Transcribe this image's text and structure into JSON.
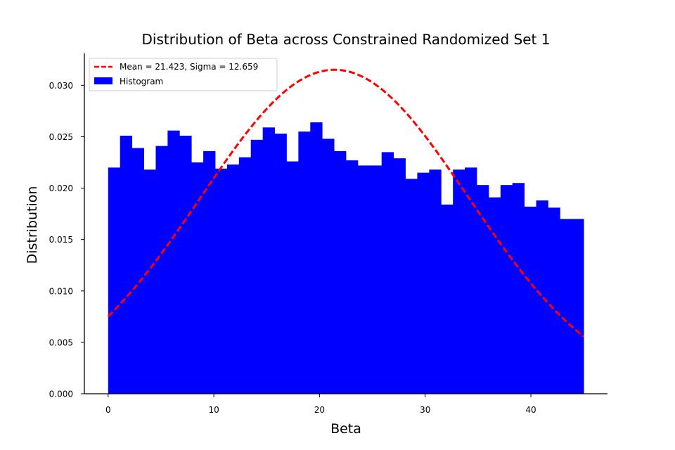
{
  "chart_data": {
    "type": "bar",
    "title": "Distribution of Beta across Constrained Randomized Set 1",
    "xlabel": "Beta",
    "ylabel": "Distribution",
    "xlim": [
      -2.25,
      47.25
    ],
    "ylim": [
      0,
      0.0331
    ],
    "xticks": [
      0,
      10,
      20,
      30,
      40
    ],
    "yticks": [
      "0.000",
      "0.005",
      "0.010",
      "0.015",
      "0.020",
      "0.025",
      "0.030"
    ],
    "grid": false,
    "legend_position": "top-left",
    "bin_edges": [
      0,
      1.125,
      2.25,
      3.375,
      4.5,
      5.625,
      6.75,
      7.875,
      9,
      10.125,
      11.25,
      12.375,
      13.5,
      14.625,
      15.75,
      16.875,
      18,
      19.125,
      20.25,
      21.375,
      22.5,
      23.625,
      24.75,
      25.875,
      27,
      28.125,
      29.25,
      30.375,
      31.5,
      32.625,
      33.75,
      34.875,
      36,
      37.125,
      38.25,
      39.375,
      40.5,
      41.625,
      42.75,
      43.875,
      45
    ],
    "values": [
      0.022,
      0.0251,
      0.0239,
      0.0218,
      0.0241,
      0.0256,
      0.0251,
      0.0225,
      0.0236,
      0.0219,
      0.0223,
      0.023,
      0.0247,
      0.0259,
      0.0253,
      0.0226,
      0.0255,
      0.0264,
      0.0248,
      0.0236,
      0.0227,
      0.0222,
      0.0222,
      0.0235,
      0.0229,
      0.0209,
      0.0215,
      0.0218,
      0.0184,
      0.0218,
      0.022,
      0.0203,
      0.0191,
      0.0203,
      0.0205,
      0.0182,
      0.0188,
      0.0181,
      0.017,
      0.017
    ],
    "fit": {
      "mean": 21.423,
      "sigma": 12.659,
      "x_range": [
        0,
        45
      ]
    },
    "series": [
      {
        "name": "Mean = 21.423, Sigma = 12.659",
        "kind": "line",
        "color": "#ff0000",
        "style": "dashed"
      },
      {
        "name": "Histogram",
        "kind": "bar",
        "color": "#0000ff"
      }
    ]
  }
}
